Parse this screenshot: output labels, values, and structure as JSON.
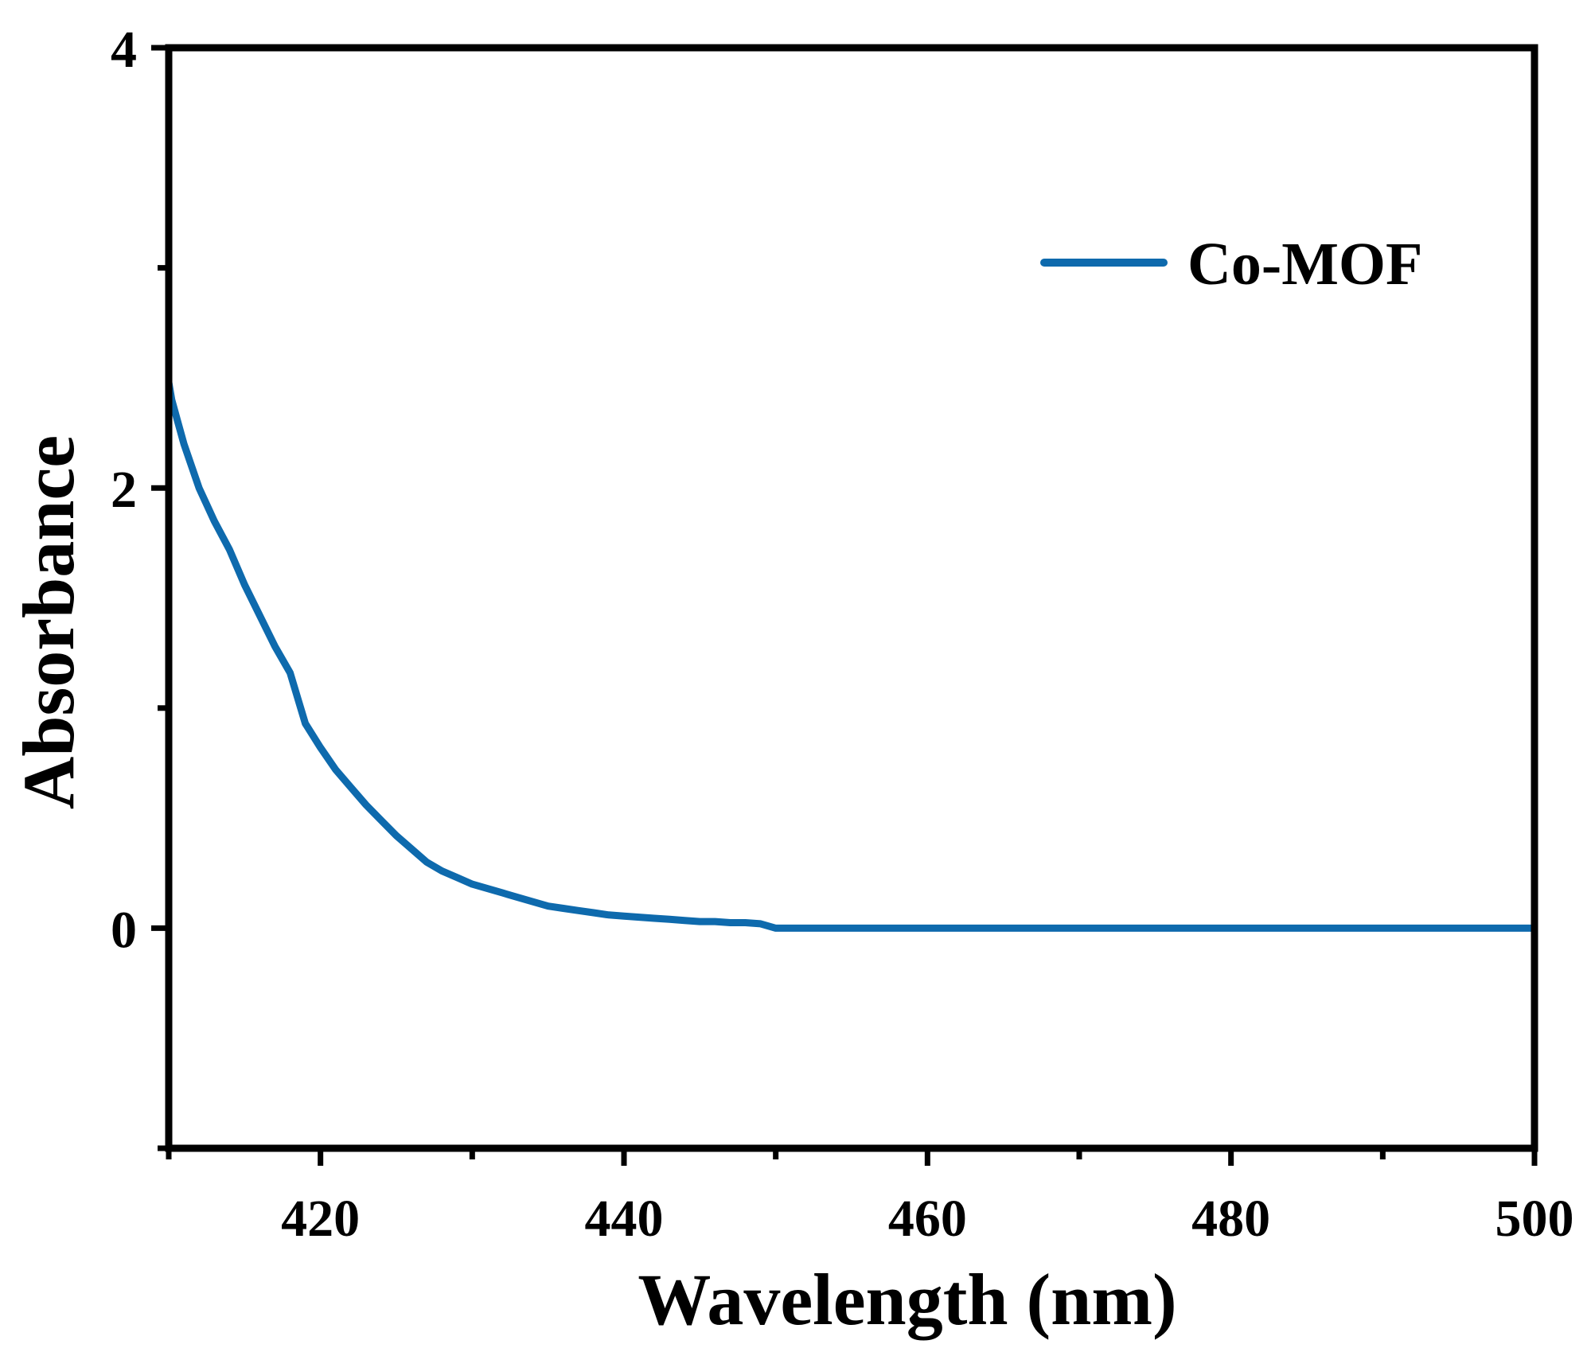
{
  "chart_data": {
    "type": "line",
    "title": "",
    "xlabel": "Wavelength (nm)",
    "ylabel": "Absorbance",
    "xlim": [
      410,
      500
    ],
    "ylim": [
      -1,
      4
    ],
    "x_ticks": [
      420,
      440,
      460,
      480,
      500
    ],
    "x_minor_ticks": [
      410,
      430,
      450,
      470,
      490
    ],
    "y_ticks": [
      0,
      2,
      4
    ],
    "y_minor_ticks": [
      -1,
      1,
      3
    ],
    "grid": false,
    "legend": {
      "position": "top-right",
      "entries": [
        "Co-MOF"
      ]
    },
    "series": [
      {
        "name": "Co-MOF",
        "color": "#0e6aad",
        "x": [
          410,
          410.2,
          410.6,
          411,
          412,
          413,
          414,
          415,
          416,
          417,
          418,
          419,
          420,
          421,
          422,
          423,
          424,
          425,
          426,
          427,
          428,
          429,
          430,
          431,
          432,
          433,
          434,
          435,
          436,
          437,
          438,
          439,
          440,
          441,
          442,
          443,
          444,
          445,
          446,
          447,
          448,
          449,
          450,
          455,
          460,
          465,
          470,
          475,
          480,
          485,
          490,
          495,
          500
        ],
        "values": [
          2.48,
          2.4,
          2.3,
          2.2,
          2.0,
          1.85,
          1.72,
          1.56,
          1.42,
          1.28,
          1.16,
          0.93,
          0.82,
          0.72,
          0.64,
          0.56,
          0.49,
          0.42,
          0.36,
          0.3,
          0.26,
          0.23,
          0.2,
          0.18,
          0.16,
          0.14,
          0.12,
          0.1,
          0.09,
          0.08,
          0.07,
          0.06,
          0.055,
          0.05,
          0.045,
          0.04,
          0.035,
          0.03,
          0.03,
          0.025,
          0.025,
          0.02,
          0.0,
          0.0,
          0.0,
          0.0,
          0.0,
          0.0,
          0.0,
          0.0,
          0.0,
          0.0,
          0.0
        ]
      }
    ]
  }
}
